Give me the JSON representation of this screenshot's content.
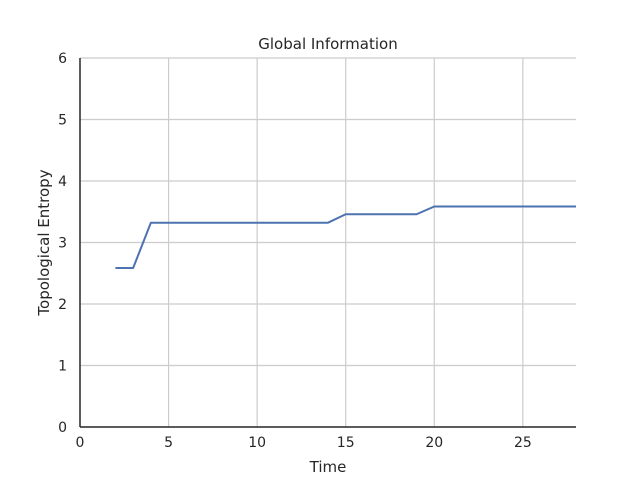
{
  "chart_data": {
    "type": "line",
    "title": "Global Information",
    "xlabel": "Time",
    "ylabel": "Topological Entropy",
    "xlim": [
      0,
      28
    ],
    "ylim": [
      0,
      6
    ],
    "xticks": [
      0,
      5,
      10,
      15,
      20,
      25
    ],
    "yticks": [
      0,
      1,
      2,
      3,
      4,
      5,
      6
    ],
    "grid": true,
    "series": [
      {
        "color": "#4c72b0",
        "x": [
          2,
          3,
          4,
          5,
          6,
          7,
          8,
          9,
          10,
          11,
          12,
          13,
          14,
          15,
          16,
          17,
          18,
          19,
          20,
          21,
          22,
          23,
          24,
          25,
          26,
          27,
          28
        ],
        "y": [
          2.585,
          2.585,
          3.322,
          3.322,
          3.322,
          3.322,
          3.322,
          3.322,
          3.322,
          3.322,
          3.322,
          3.322,
          3.322,
          3.459,
          3.459,
          3.459,
          3.459,
          3.459,
          3.585,
          3.585,
          3.585,
          3.585,
          3.585,
          3.585,
          3.585,
          3.585,
          3.585
        ]
      }
    ]
  }
}
